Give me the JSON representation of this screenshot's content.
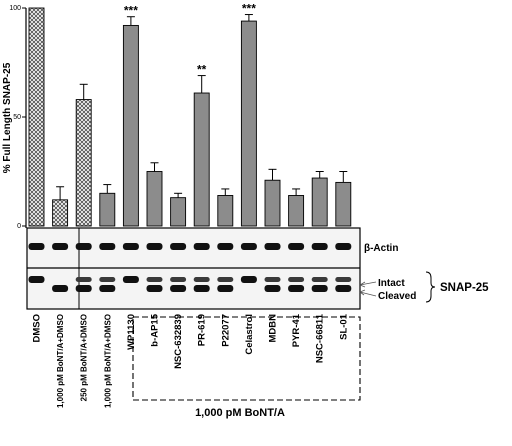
{
  "chart_data": {
    "type": "bar",
    "ylabel": "% Full Length SNAP-25",
    "ylim": [
      0,
      100
    ],
    "yticks": [
      "0",
      "50",
      "100"
    ],
    "categories": [
      "DMSO",
      "1,000 pM BoNT/A+DMSO",
      "250 pM BoNT/A+DMSO",
      "1,000 pM BoNT/A+DMSO",
      "WP1130",
      "b-AP15",
      "NSC-632839",
      "PR-619",
      "P22077",
      "Celastrol",
      "MDBN",
      "PYR-41",
      "NSC-66811",
      "SL-01"
    ],
    "values": [
      100,
      12,
      58,
      15,
      92,
      25,
      13,
      61,
      14,
      94,
      21,
      14,
      22,
      20
    ],
    "errors": [
      0,
      6,
      7,
      4,
      4,
      4,
      2,
      8,
      3,
      3,
      5,
      3,
      3,
      5
    ],
    "significance": [
      "",
      "",
      "",
      "",
      "***",
      "",
      "",
      "**",
      "",
      "***",
      "",
      "",
      "",
      ""
    ],
    "patterned_bars": [
      0,
      1,
      2
    ],
    "colors": {
      "bar_fill": "#8c8c8c",
      "pattern_line": "#4a4a4a",
      "band_dark": "#111111",
      "blot_bg": "#f4f4f4"
    }
  },
  "blot": {
    "actin_label": "β-Actin",
    "intact_label": "Intact",
    "cleaved_label": "Cleaved",
    "snap_label": "SNAP-25",
    "group_label": "1,000 pM BoNT/A",
    "snap_bands": [
      "i",
      "c",
      "ic",
      "ic",
      "i",
      "ic",
      "ic",
      "ic",
      "ic",
      "i",
      "ic",
      "ic",
      "ic",
      "ic"
    ]
  }
}
